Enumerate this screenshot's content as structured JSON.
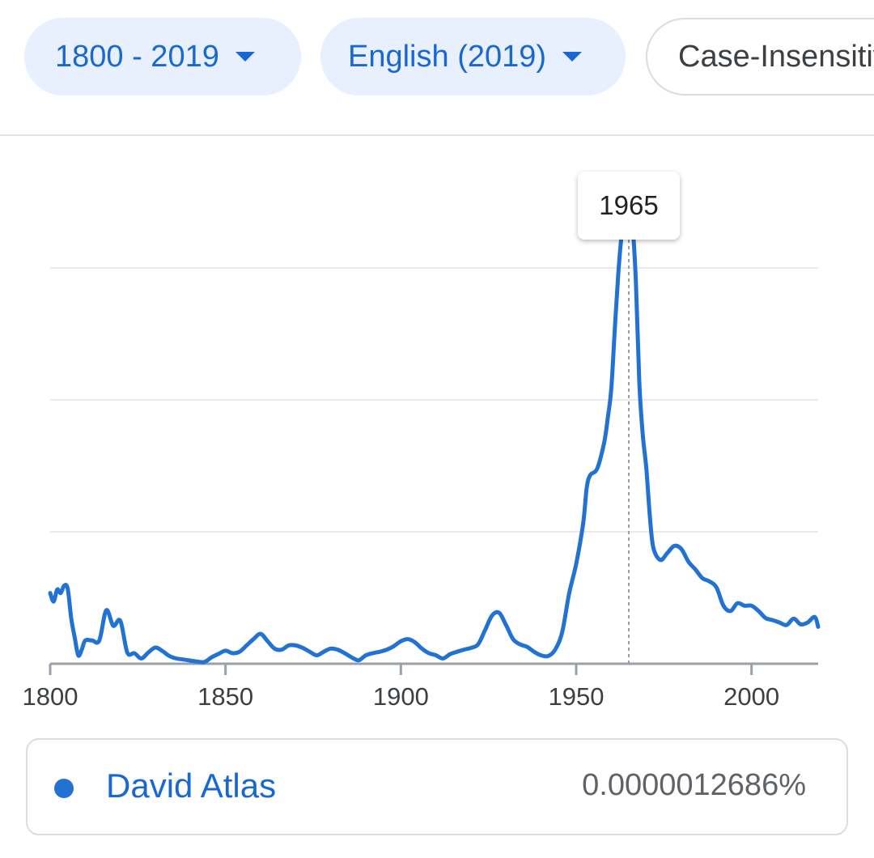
{
  "toolbar": {
    "year_range_label": "1800 - 2019",
    "corpus_label": "English (2019)",
    "case_label": "Case-Insensitive"
  },
  "tooltip": {
    "year": "1965"
  },
  "legend": {
    "series_name": "David Atlas",
    "value": "0.0000012686%"
  },
  "colors": {
    "series": "#2272d4",
    "accent": "#1967d2",
    "grid": "#e8eaed",
    "axis": "#9aa0a6"
  },
  "chart_data": {
    "type": "line",
    "title": "",
    "xlabel": "",
    "ylabel": "",
    "xlim": [
      1800,
      2019
    ],
    "ylim": [
      0,
      1.5e-06
    ],
    "x_ticks": [
      "1800",
      "1850",
      "1900",
      "1950",
      "2000"
    ],
    "gridlines": "horizontal, no y tick labels",
    "highlight": {
      "x": 1965,
      "y": 1.2686e-06
    },
    "series": [
      {
        "name": "David Atlas",
        "points": [
          [
            1800,
            2.01e-07
          ],
          [
            1801,
            1.77e-07
          ],
          [
            1802,
            2.11e-07
          ],
          [
            1803,
            2.01e-07
          ],
          [
            1804,
            2.22e-07
          ],
          [
            1805,
            2.13e-07
          ],
          [
            1806,
            1.29e-07
          ],
          [
            1807,
            7.5e-08
          ],
          [
            1808,
            2.4e-08
          ],
          [
            1809,
            4e-08
          ],
          [
            1810,
            6.6e-08
          ],
          [
            1812,
            6.6e-08
          ],
          [
            1814,
            6.6e-08
          ],
          [
            1816,
            1.52e-07
          ],
          [
            1818,
            1.08e-07
          ],
          [
            1820,
            1.22e-07
          ],
          [
            1822,
            3.2e-08
          ],
          [
            1824,
            3e-08
          ],
          [
            1826,
            1.5e-08
          ],
          [
            1828,
            3.2e-08
          ],
          [
            1830,
            4.6e-08
          ],
          [
            1832,
            3.6e-08
          ],
          [
            1834,
            2.2e-08
          ],
          [
            1836,
            1.5e-08
          ],
          [
            1838,
            1.2e-08
          ],
          [
            1840,
            9e-09
          ],
          [
            1842,
            6e-09
          ],
          [
            1844,
            5e-09
          ],
          [
            1846,
            1.8e-08
          ],
          [
            1848,
            2.8e-08
          ],
          [
            1850,
            3.7e-08
          ],
          [
            1852,
            3e-08
          ],
          [
            1854,
            3.4e-08
          ],
          [
            1856,
            5.2e-08
          ],
          [
            1858,
            7e-08
          ],
          [
            1860,
            8.5e-08
          ],
          [
            1862,
            6.4e-08
          ],
          [
            1864,
            4.3e-08
          ],
          [
            1866,
            4e-08
          ],
          [
            1868,
            5.2e-08
          ],
          [
            1870,
            5.2e-08
          ],
          [
            1872,
            4.5e-08
          ],
          [
            1874,
            3.4e-08
          ],
          [
            1876,
            2.4e-08
          ],
          [
            1878,
            3.4e-08
          ],
          [
            1880,
            4.3e-08
          ],
          [
            1882,
            4e-08
          ],
          [
            1884,
            3e-08
          ],
          [
            1886,
            1.8e-08
          ],
          [
            1888,
            1e-08
          ],
          [
            1890,
            2.4e-08
          ],
          [
            1892,
            3e-08
          ],
          [
            1894,
            3.4e-08
          ],
          [
            1896,
            4e-08
          ],
          [
            1898,
            5e-08
          ],
          [
            1900,
            6.4e-08
          ],
          [
            1902,
            7e-08
          ],
          [
            1904,
            6.1e-08
          ],
          [
            1906,
            4.3e-08
          ],
          [
            1908,
            3e-08
          ],
          [
            1910,
            2.4e-08
          ],
          [
            1912,
            1.5e-08
          ],
          [
            1914,
            2.7e-08
          ],
          [
            1916,
            3.4e-08
          ],
          [
            1918,
            4e-08
          ],
          [
            1920,
            4.5e-08
          ],
          [
            1922,
            5.5e-08
          ],
          [
            1924,
            9.5e-08
          ],
          [
            1926,
            1.37e-07
          ],
          [
            1928,
            1.45e-07
          ],
          [
            1930,
            1.1e-07
          ],
          [
            1932,
            7e-08
          ],
          [
            1934,
            5.5e-08
          ],
          [
            1936,
            4.8e-08
          ],
          [
            1938,
            3.4e-08
          ],
          [
            1940,
            2.4e-08
          ],
          [
            1942,
            2.2e-08
          ],
          [
            1944,
            4e-08
          ],
          [
            1946,
            9e-08
          ],
          [
            1948,
            2e-07
          ],
          [
            1950,
            2.84e-07
          ],
          [
            1952,
            4e-07
          ],
          [
            1953,
            5e-07
          ],
          [
            1954,
            5.36e-07
          ],
          [
            1956,
            5.55e-07
          ],
          [
            1958,
            6.3e-07
          ],
          [
            1959,
            6.98e-07
          ],
          [
            1960,
            7.8e-07
          ],
          [
            1961,
            9.5e-07
          ],
          [
            1962,
            1.108e-06
          ],
          [
            1963,
            1.22e-06
          ],
          [
            1964,
            1.262e-06
          ],
          [
            1965,
            1.2686e-06
          ],
          [
            1966,
            1.25e-06
          ],
          [
            1967,
            1.09e-06
          ],
          [
            1968,
            8e-07
          ],
          [
            1969,
            6.5e-07
          ],
          [
            1970,
            5.55e-07
          ],
          [
            1971,
            4.2e-07
          ],
          [
            1972,
            3.3e-07
          ],
          [
            1974,
            2.95e-07
          ],
          [
            1976,
            3.15e-07
          ],
          [
            1978,
            3.35e-07
          ],
          [
            1980,
            3.26e-07
          ],
          [
            1982,
            2.9e-07
          ],
          [
            1984,
            2.68e-07
          ],
          [
            1986,
            2.43e-07
          ],
          [
            1988,
            2.34e-07
          ],
          [
            1990,
            2.17e-07
          ],
          [
            1992,
            1.65e-07
          ],
          [
            1994,
            1.5e-07
          ],
          [
            1996,
            1.72e-07
          ],
          [
            1998,
            1.65e-07
          ],
          [
            2000,
            1.65e-07
          ],
          [
            2002,
            1.5e-07
          ],
          [
            2004,
            1.3e-07
          ],
          [
            2006,
            1.24e-07
          ],
          [
            2008,
            1.17e-07
          ],
          [
            2010,
            1.1e-07
          ],
          [
            2012,
            1.28e-07
          ],
          [
            2014,
            1.12e-07
          ],
          [
            2016,
            1.17e-07
          ],
          [
            2018,
            1.33e-07
          ],
          [
            2019,
            1.05e-07
          ]
        ]
      }
    ]
  }
}
